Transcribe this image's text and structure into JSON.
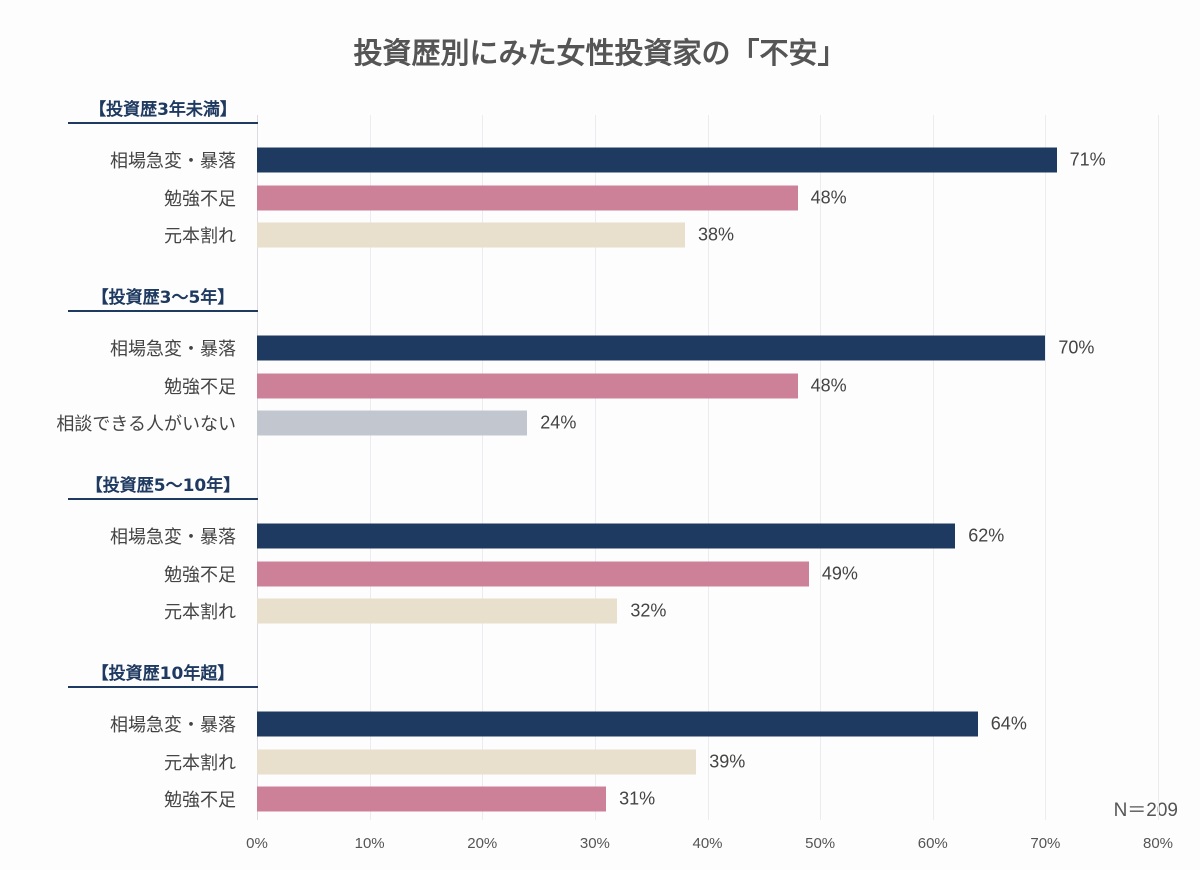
{
  "chart_data": {
    "type": "bar",
    "orientation": "horizontal",
    "title": "投資歴別にみた女性投資家の「不安」",
    "xlim": [
      0,
      80
    ],
    "xticks": [
      "0%",
      "10%",
      "20%",
      "30%",
      "40%",
      "50%",
      "60%",
      "70%",
      "80%"
    ],
    "grid": true,
    "note": "N＝209",
    "colors": {
      "相場急変・暴落": "#1f3a60",
      "勉強不足": "#cc8199",
      "元本割れ": "#e8dfcc",
      "相談できる人がいない": "#c1c6cf"
    },
    "groups": [
      {
        "label": "【投資歴3年未満】",
        "items": [
          {
            "category": "相場急変・暴落",
            "value": 71
          },
          {
            "category": "勉強不足",
            "value": 48
          },
          {
            "category": "元本割れ",
            "value": 38
          }
        ]
      },
      {
        "label": "【投資歴3〜5年】",
        "items": [
          {
            "category": "相場急変・暴落",
            "value": 70
          },
          {
            "category": "勉強不足",
            "value": 48
          },
          {
            "category": "相談できる人がいない",
            "value": 24
          }
        ]
      },
      {
        "label": "【投資歴5〜10年】",
        "items": [
          {
            "category": "相場急変・暴落",
            "value": 62
          },
          {
            "category": "勉強不足",
            "value": 49
          },
          {
            "category": "元本割れ",
            "value": 32
          }
        ]
      },
      {
        "label": "【投資歴10年超】",
        "items": [
          {
            "category": "相場急変・暴落",
            "value": 64
          },
          {
            "category": "元本割れ",
            "value": 39
          },
          {
            "category": "勉強不足",
            "value": 31
          }
        ]
      }
    ]
  }
}
